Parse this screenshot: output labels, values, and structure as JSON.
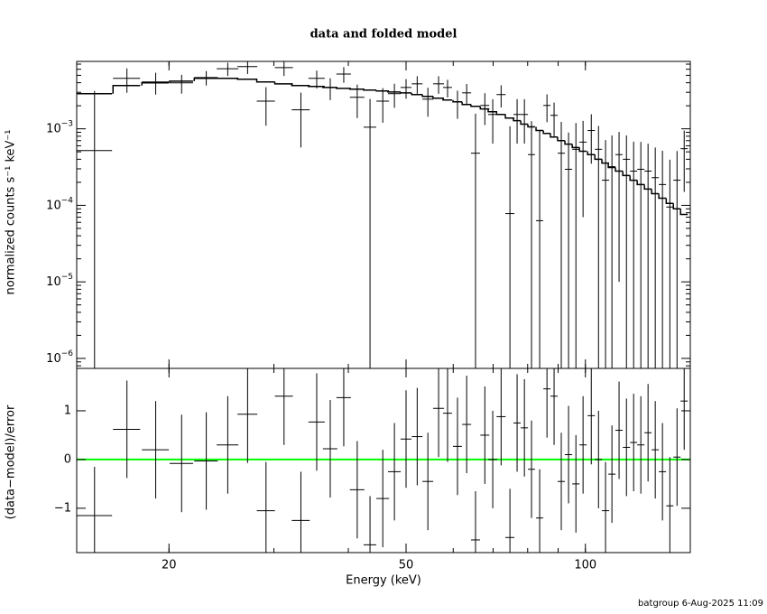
{
  "footer": "batgroup  6-Aug-2025 11:09",
  "chart_data": [
    {
      "type": "errorbar",
      "title": "data and folded model",
      "ylabel": "normalized counts s⁻¹ keV⁻¹",
      "xscale": "log",
      "yscale": "log",
      "xlim": [
        14,
        150
      ],
      "ylim": [
        7.4e-07,
        0.0076
      ],
      "yticks": [
        {
          "value": 1e-06,
          "label": "10−6"
        },
        {
          "value": 1e-05,
          "label": "10−5"
        },
        {
          "value": 0.0001,
          "label": "10−4"
        },
        {
          "value": 0.001,
          "label": "10−3"
        }
      ],
      "color": "#000000",
      "model_color": "#000000",
      "x": [
        15.0,
        17.0,
        19.0,
        21.0,
        23.1,
        25.1,
        27.1,
        29.1,
        31.2,
        33.3,
        35.4,
        37.3,
        39.3,
        41.4,
        43.5,
        45.7,
        47.8,
        50.0,
        52.2,
        54.4,
        56.7,
        58.7,
        61.0,
        63.2,
        65.4,
        67.8,
        69.9,
        72.2,
        74.7,
        76.8,
        79.0,
        81.2,
        83.8,
        86.2,
        88.6,
        91.1,
        93.7,
        96.4,
        99.1,
        102.3,
        105.2,
        108.1,
        110.8,
        113.9,
        117.2,
        120.5,
        123.9,
        127.4,
        131.0,
        134.7,
        138.6,
        142.5,
        146.5
      ],
      "xerr": [
        1.05,
        0.89,
        0.99,
        0.95,
        1.05,
        1.05,
        1.04,
        1.02,
        1.09,
        1.16,
        1.11,
        1.04,
        1.1,
        1.16,
        1.06,
        1.12,
        1.17,
        1.05,
        1.09,
        1.14,
        1.19,
        1.02,
        1.06,
        1.1,
        1.14,
        1.18,
        1.22,
        1.26,
        1.3,
        1.07,
        1.1,
        1.13,
        1.17,
        1.2,
        1.24,
        1.27,
        1.31,
        1.35,
        1.38,
        1.43,
        1.47,
        1.51,
        1.55,
        1.59,
        1.64,
        1.68,
        1.73,
        1.78,
        1.83,
        1.88,
        1.93,
        1.99,
        2.04
      ],
      "values": [
        0.00052,
        0.00456,
        0.0041,
        0.00398,
        0.00468,
        0.0061,
        0.0065,
        0.0023,
        0.0063,
        0.00177,
        0.00456,
        0.00347,
        0.0052,
        0.00258,
        0.00105,
        0.0023,
        0.00288,
        0.00347,
        0.00387,
        0.00244,
        0.00387,
        0.00347,
        0.00225,
        0.00295,
        0.00048,
        0.00202,
        0.00154,
        0.0028,
        7.8e-05,
        0.00154,
        0.00154,
        0.00046,
        6.3e-05,
        0.00202,
        0.0015,
        0.00048,
        0.000296,
        0.00054,
        0.00067,
        0.00095,
        0.00054,
        0.000213,
        0.00032,
        0.00046,
        0.0004,
        0.00028,
        0.000296,
        0.00028,
        0.00023,
        0.000187,
        9.5e-05,
        0.000213,
        0.00055
      ],
      "yerr": [
        0.0026,
        0.0016,
        0.0013,
        0.0011,
        0.001,
        0.0012,
        0.0013,
        0.0012,
        0.0014,
        0.0012,
        0.0012,
        0.0011,
        0.0012,
        0.0012,
        0.0014,
        0.0011,
        0.001,
        0.001,
        0.001,
        0.001,
        0.001,
        0.0009,
        0.0009,
        0.0009,
        0.0011,
        0.0009,
        0.0009,
        0.0009,
        0.001,
        0.0009,
        0.0009,
        0.0008,
        0.0009,
        0.0008,
        0.0007,
        0.00075,
        0.0006,
        0.00065,
        0.0006,
        0.0006,
        0.00055,
        0.0005,
        0.0005,
        0.00045,
        0.00042,
        0.0004,
        0.00038,
        0.00036,
        0.00034,
        0.00033,
        0.0003,
        0.0003,
        0.0004
      ],
      "model": [
        0.00288,
        0.00367,
        0.00398,
        0.0042,
        0.00456,
        0.00456,
        0.00444,
        0.0041,
        0.00387,
        0.00367,
        0.00357,
        0.00347,
        0.00338,
        0.0033,
        0.00321,
        0.00312,
        0.00303,
        0.00295,
        0.0028,
        0.00265,
        0.00251,
        0.00238,
        0.00225,
        0.00208,
        0.00197,
        0.00182,
        0.00167,
        0.00154,
        0.00138,
        0.00128,
        0.00115,
        0.00106,
        0.00095,
        0.00087,
        0.00078,
        0.0007,
        0.00063,
        0.00057,
        0.00051,
        0.00046,
        0.0004,
        0.000357,
        0.000312,
        0.00028,
        0.000245,
        0.000213,
        0.000187,
        0.000163,
        0.000142,
        0.000124,
        0.000106,
        9e-05,
        7.6e-05
      ]
    },
    {
      "type": "residual",
      "ylabel": "(data−model)/error",
      "xlabel": "Energy (keV)",
      "xscale": "log",
      "xlim": [
        14,
        150
      ],
      "xticks": [
        20,
        50,
        100
      ],
      "ylim": [
        -1.91,
        1.87
      ],
      "yticks": [
        {
          "value": -1,
          "label": "−1"
        },
        0,
        1
      ],
      "color": "#000000",
      "ref_line": 0,
      "ref_color": "#00ff00",
      "values": [
        -1.15,
        0.62,
        0.2,
        -0.08,
        -0.03,
        0.3,
        0.93,
        -1.05,
        1.3,
        -1.25,
        0.77,
        0.22,
        1.27,
        -0.62,
        -1.75,
        -0.8,
        -0.25,
        0.42,
        0.47,
        -0.45,
        1.05,
        0.95,
        0.27,
        0.72,
        -1.65,
        0.5,
        0.0,
        0.88,
        -1.6,
        0.75,
        0.65,
        -0.2,
        -1.2,
        1.45,
        1.3,
        -0.45,
        0.1,
        -0.5,
        0.3,
        0.9,
        0.0,
        -1.05,
        -0.3,
        0.6,
        0.25,
        0.35,
        0.3,
        0.55,
        0.2,
        -0.25,
        -0.95,
        0.05,
        1.2
      ],
      "yerr": [
        1,
        1,
        1,
        1,
        1,
        1,
        1,
        1,
        1,
        1,
        1,
        1,
        1,
        1,
        1,
        1,
        1,
        1,
        1,
        1,
        1,
        1,
        1,
        1,
        1,
        1,
        1,
        1,
        1,
        1,
        1,
        1,
        1,
        1,
        1,
        1,
        1,
        1,
        1,
        1,
        1,
        1,
        1,
        1,
        1,
        1,
        1,
        1,
        1,
        1,
        1,
        1,
        1
      ]
    }
  ]
}
